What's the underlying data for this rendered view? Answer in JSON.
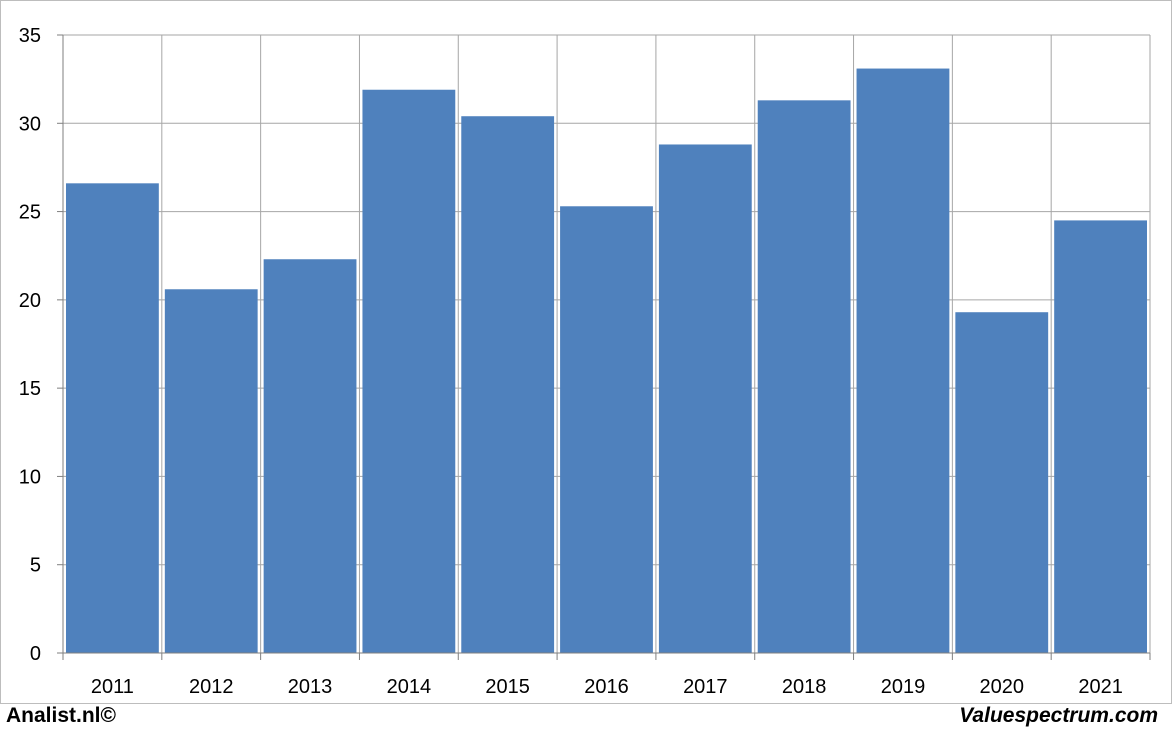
{
  "chart_data": {
    "type": "bar",
    "categories": [
      "2011",
      "2012",
      "2013",
      "2014",
      "2015",
      "2016",
      "2017",
      "2018",
      "2019",
      "2020",
      "2021"
    ],
    "values": [
      26.6,
      20.6,
      22.3,
      31.9,
      30.4,
      25.3,
      28.8,
      31.3,
      33.1,
      19.3,
      24.5
    ],
    "ylim": [
      0,
      35
    ],
    "yticks": [
      0,
      5,
      10,
      15,
      20,
      25,
      30,
      35
    ],
    "grid": true,
    "bar_color": "#4f81bd",
    "grid_color": "#a6a6a6"
  },
  "footer": {
    "left_text": "Analist.nl©",
    "right_text": "Valuespectrum.com"
  }
}
